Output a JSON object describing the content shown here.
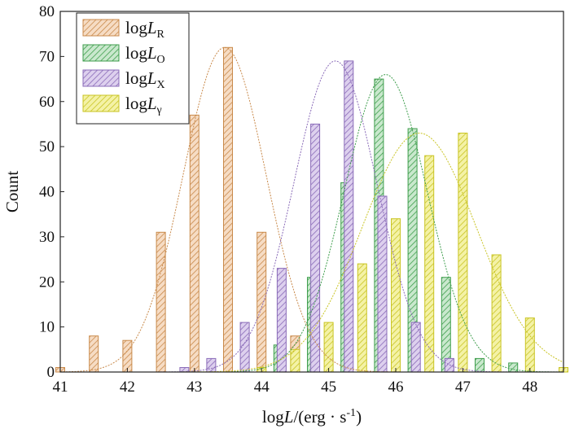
{
  "chart_data": {
    "type": "bar",
    "title": "",
    "xlabel_parts": {
      "pre": "log",
      "var": "L",
      "mid": "/(erg · s",
      "sup": "-1",
      "post": ")"
    },
    "ylabel": "Count",
    "xlim": [
      41,
      48.5
    ],
    "ylim": [
      0,
      80
    ],
    "xticks": [
      41,
      42,
      43,
      44,
      45,
      46,
      47,
      48
    ],
    "yticks": [
      0,
      10,
      20,
      30,
      40,
      50,
      60,
      70,
      80
    ],
    "legend_position": "top-left",
    "series": [
      {
        "name": "logL_R",
        "legend_pre": "log",
        "legend_var": "L",
        "legend_sub": "R",
        "color": "#c98a4b",
        "fill": "#f6dcc4",
        "offset": 0,
        "x": [
          41,
          41.5,
          42,
          42.5,
          43,
          43.5,
          44,
          44.5
        ],
        "values": [
          1,
          8,
          7,
          31,
          57,
          72,
          31,
          8
        ],
        "fit": {
          "mu": 43.45,
          "sigma": 0.62,
          "peak": 72
        }
      },
      {
        "name": "logL_O",
        "legend_pre": "log",
        "legend_var": "L",
        "legend_sub": "O",
        "color": "#3f9e4d",
        "fill": "#c9e8cd",
        "offset": 0.05,
        "x": [
          44.2,
          44.7,
          45.2,
          45.7,
          46.2,
          46.7,
          47.2,
          47.7
        ],
        "values": [
          6,
          21,
          42,
          65,
          54,
          21,
          3,
          2
        ],
        "fit": {
          "mu": 45.85,
          "sigma": 0.62,
          "peak": 66
        }
      },
      {
        "name": "logL_X",
        "legend_pre": "log",
        "legend_var": "L",
        "legend_sub": "X",
        "color": "#8a6bb8",
        "fill": "#ddd0ee",
        "offset": -0.05,
        "x": [
          42.9,
          43.3,
          43.8,
          44.35,
          44.85,
          45.35,
          45.85,
          46.35,
          46.85
        ],
        "values": [
          1,
          3,
          11,
          23,
          55,
          69,
          39,
          11,
          3
        ],
        "fit": {
          "mu": 45.1,
          "sigma": 0.62,
          "peak": 69
        }
      },
      {
        "name": "logL_γ",
        "legend_pre": "log",
        "legend_var": "L",
        "legend_sub": "γ",
        "color": "#c9c423",
        "fill": "#f4f2a6",
        "offset": 0.1,
        "x": [
          43.9,
          44.4,
          44.9,
          45.4,
          45.9,
          46.4,
          46.9,
          47.4,
          47.9,
          48.4
        ],
        "values": [
          1,
          5,
          11,
          24,
          34,
          48,
          53,
          26,
          12,
          1
        ],
        "fit": {
          "mu": 46.35,
          "sigma": 0.85,
          "peak": 53
        }
      }
    ]
  }
}
